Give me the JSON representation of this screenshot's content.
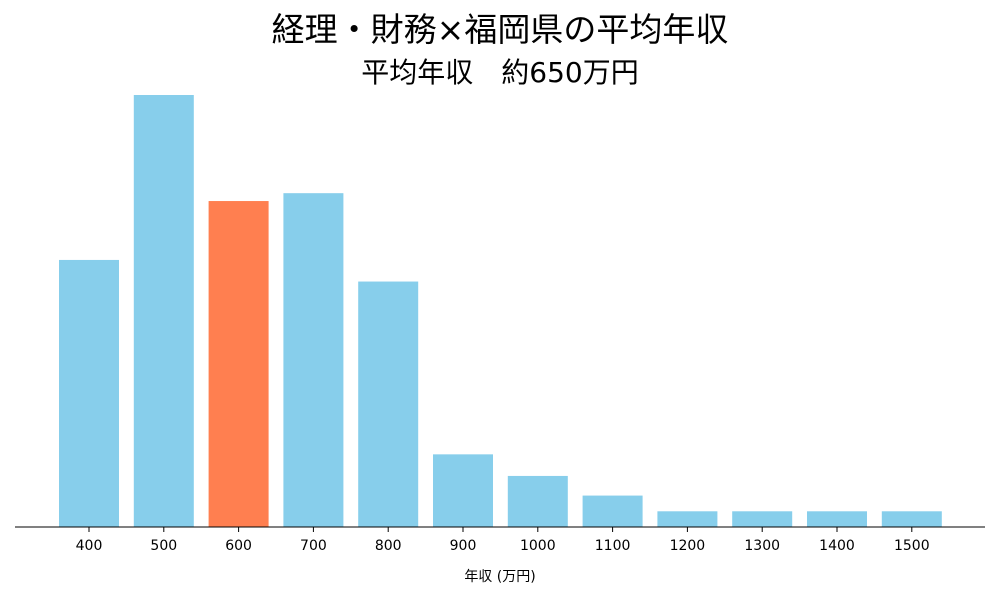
{
  "chart_data": {
    "type": "bar",
    "title": "経理・財務×福岡県の平均年収",
    "subtitle": "平均年収　約650万円",
    "xlabel": "年収 (万円)",
    "ylabel": "",
    "categories": [
      "400",
      "500",
      "600",
      "700",
      "800",
      "900",
      "1000",
      "1100",
      "1200",
      "1300",
      "1400",
      "1500"
    ],
    "values": [
      13.6,
      22.0,
      16.6,
      17.0,
      12.5,
      3.7,
      2.6,
      1.6,
      0.8,
      0.8,
      0.8,
      0.8
    ],
    "ylim": [
      0,
      22
    ],
    "highlight_category": "600",
    "colors": {
      "bar": "#87ceeb",
      "highlight": "#ff7f50",
      "axis": "#000000"
    },
    "grid": false,
    "legend": "none"
  }
}
